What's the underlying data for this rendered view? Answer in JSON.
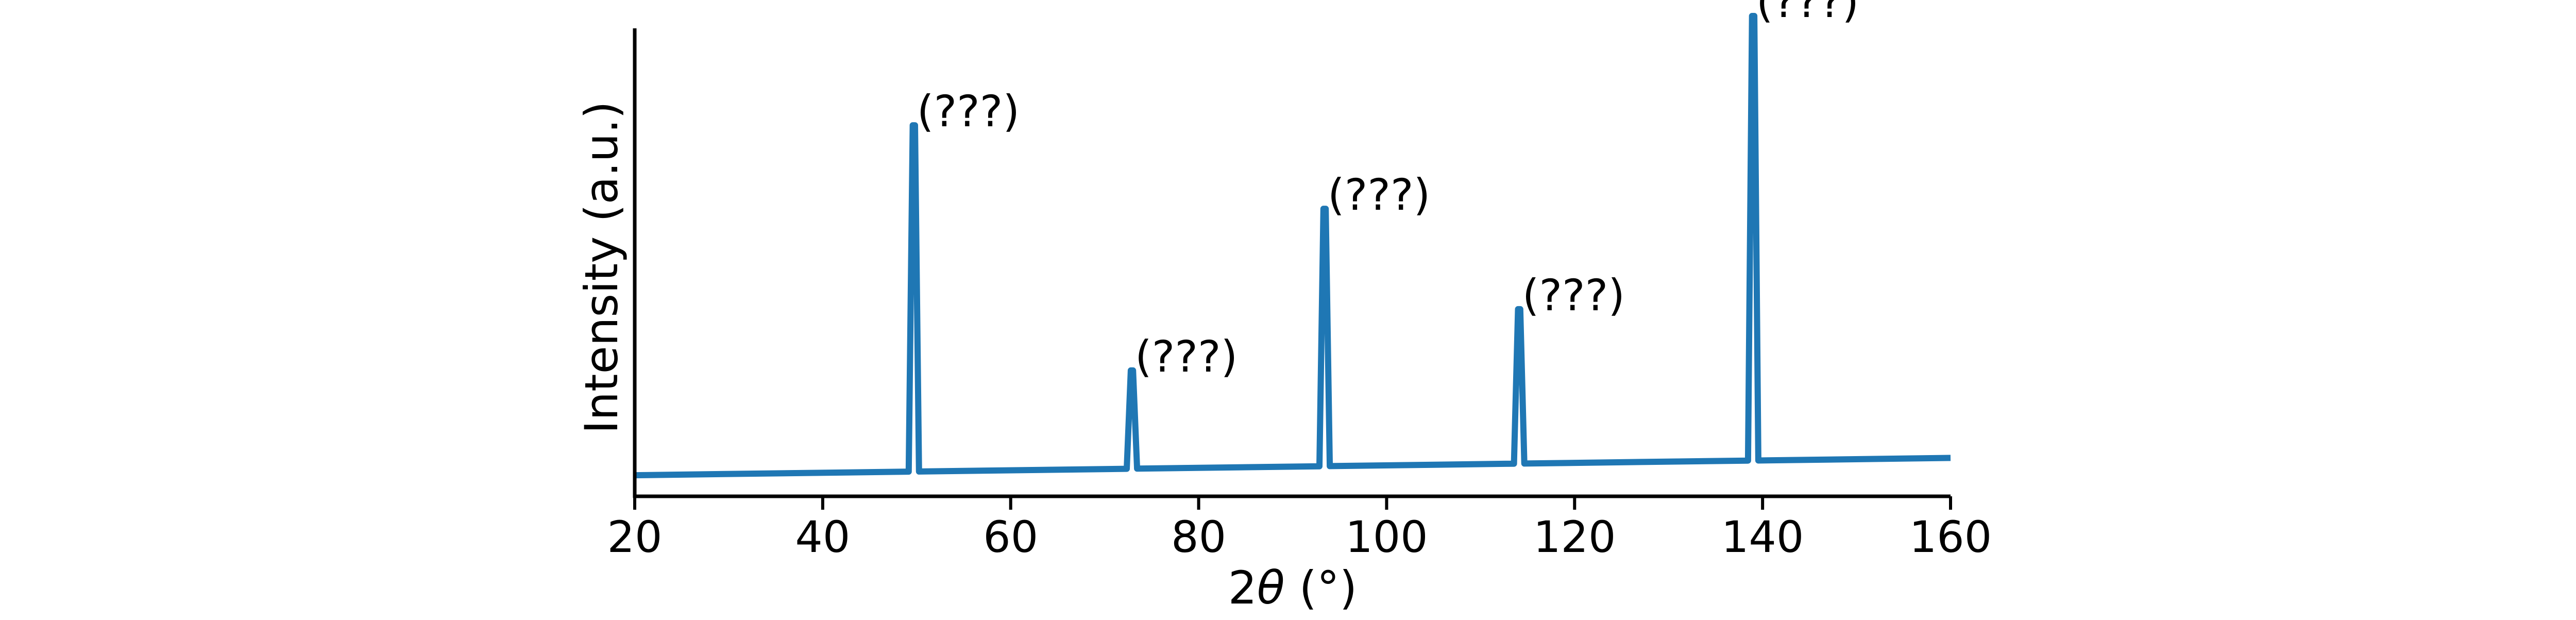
{
  "chart_data": {
    "type": "line",
    "title": "",
    "xlabel_prefix": "2",
    "xlabel_symbol": "θ",
    "xlabel_unit": " (°)",
    "ylabel": "Intensity (a.u.)",
    "xlim": [
      20,
      160
    ],
    "ylim": [
      0,
      100
    ],
    "y_ticks_shown": false,
    "grid": false,
    "legend": "none",
    "x_ticks": [
      {
        "value": 20,
        "label": "20"
      },
      {
        "value": 40,
        "label": "40"
      },
      {
        "value": 60,
        "label": "60"
      },
      {
        "value": 80,
        "label": "80"
      },
      {
        "value": 100,
        "label": "100"
      },
      {
        "value": 120,
        "label": "120"
      },
      {
        "value": 140,
        "label": "140"
      },
      {
        "value": 160,
        "label": "160"
      }
    ],
    "baseline": {
      "x": [
        20,
        160
      ],
      "y": [
        4.5,
        8.2
      ]
    },
    "peaks": [
      {
        "x": 49.7,
        "intensity": 74,
        "label": "(???)"
      },
      {
        "x": 72.9,
        "intensity": 21,
        "label": "(???)"
      },
      {
        "x": 93.4,
        "intensity": 55,
        "label": "(???)"
      },
      {
        "x": 114.1,
        "intensity": 33,
        "label": "(???)"
      },
      {
        "x": 139.0,
        "intensity": 95,
        "label": "(???)"
      }
    ],
    "series_color": "#1f77b4",
    "axis_color": "#000000"
  }
}
